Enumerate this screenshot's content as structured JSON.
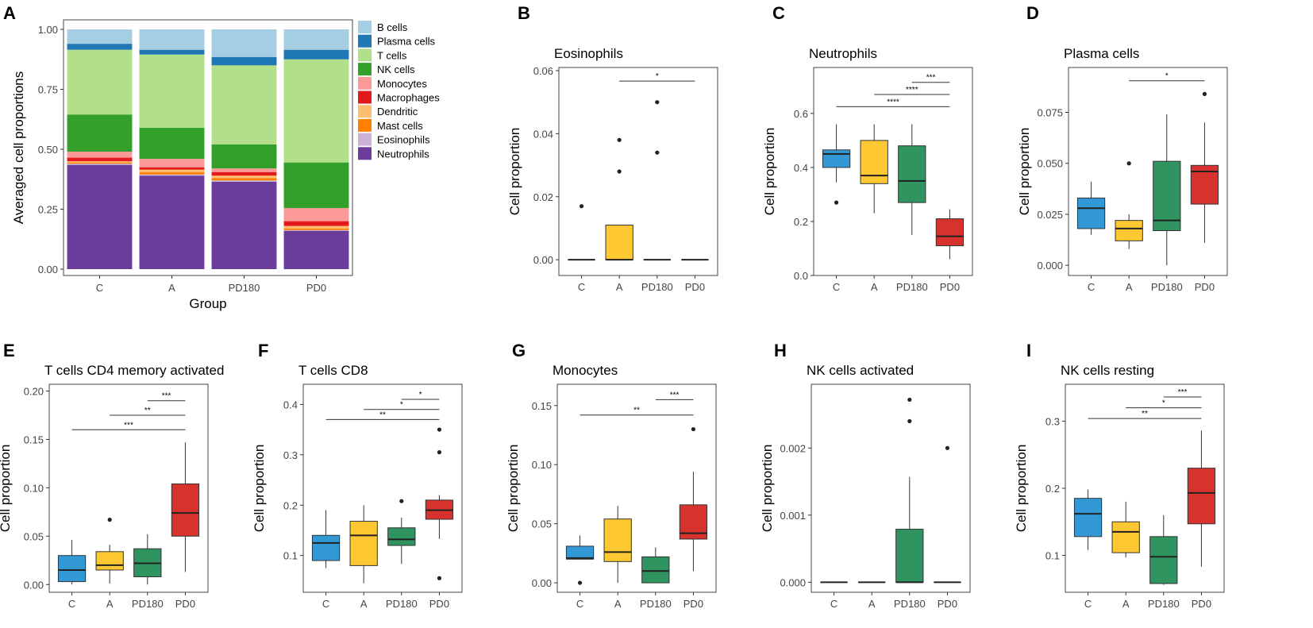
{
  "colors": {
    "C": "#3399d6",
    "A": "#fdc831",
    "PD180": "#2f9460",
    "PD0": "#d8322e"
  },
  "ylabel": "Cell proportion",
  "chart_data": [
    {
      "id": "stacked",
      "letter": "A",
      "type": "bar",
      "title": "",
      "xlabel": "Group",
      "ylabel": "Averaged cell proportions",
      "categories": [
        "C",
        "A",
        "PD180",
        "PD0"
      ],
      "ylim": [
        0,
        1
      ],
      "yticks": [
        "0.00",
        "0.25",
        "0.50",
        "0.75",
        "1.00"
      ],
      "legend_position": "right",
      "series": [
        {
          "name": "Neutrophils",
          "color": "#6a3d9a",
          "values": [
            0.435,
            0.39,
            0.365,
            0.16
          ]
        },
        {
          "name": "Eosinophils",
          "color": "#cab2d6",
          "values": [
            0.005,
            0.005,
            0.005,
            0.003
          ]
        },
        {
          "name": "Mast cells",
          "color": "#ff7f00",
          "values": [
            0.005,
            0.01,
            0.01,
            0.007
          ]
        },
        {
          "name": "Dendritic",
          "color": "#fdbf6f",
          "values": [
            0.005,
            0.01,
            0.01,
            0.01
          ]
        },
        {
          "name": "Macrophages",
          "color": "#e31a1c",
          "values": [
            0.015,
            0.01,
            0.015,
            0.02
          ]
        },
        {
          "name": "Monocytes",
          "color": "#fb9a99",
          "values": [
            0.025,
            0.035,
            0.015,
            0.055
          ]
        },
        {
          "name": "NK cells",
          "color": "#33a02c",
          "values": [
            0.155,
            0.13,
            0.1,
            0.19
          ]
        },
        {
          "name": "T cells",
          "color": "#b2df8a",
          "values": [
            0.27,
            0.305,
            0.33,
            0.43
          ]
        },
        {
          "name": "Plasma cells",
          "color": "#1f78b4",
          "values": [
            0.025,
            0.02,
            0.035,
            0.04
          ]
        },
        {
          "name": "B cells",
          "color": "#a6cee3",
          "values": [
            0.06,
            0.085,
            0.115,
            0.085
          ]
        }
      ]
    },
    {
      "id": "eos",
      "letter": "B",
      "type": "box",
      "title": "Eosinophils",
      "categories": [
        "C",
        "A",
        "PD180",
        "PD0"
      ],
      "ylim": [
        -0.005,
        0.061
      ],
      "yticks": [
        0,
        0.02,
        0.04,
        0.06
      ],
      "ytick_labels": [
        "0.00",
        "0.02",
        "0.04",
        "0.06"
      ],
      "boxes": [
        {
          "group": "C",
          "q1": 0,
          "median": 0,
          "q3": 0,
          "wlo": 0,
          "whi": 0,
          "outliers": [
            0.017
          ]
        },
        {
          "group": "A",
          "q1": 0,
          "median": 0,
          "q3": 0.011,
          "wlo": 0,
          "whi": 0.011,
          "outliers": [
            0.028,
            0.038
          ]
        },
        {
          "group": "PD180",
          "q1": 0,
          "median": 0,
          "q3": 0,
          "wlo": 0,
          "whi": 0,
          "outliers": [
            0.034,
            0.05
          ]
        },
        {
          "group": "PD0",
          "q1": 0,
          "median": 0,
          "q3": 0,
          "wlo": 0,
          "whi": 0,
          "outliers": []
        }
      ],
      "brackets": [
        {
          "from": "A",
          "to": "PD0",
          "y": 0.0567,
          "label": "*"
        }
      ]
    },
    {
      "id": "neu",
      "letter": "C",
      "type": "box",
      "title": "Neutrophils",
      "categories": [
        "C",
        "A",
        "PD180",
        "PD0"
      ],
      "ylim": [
        0,
        0.77
      ],
      "yticks": [
        0,
        0.2,
        0.4,
        0.6
      ],
      "ytick_labels": [
        "0.0",
        "0.2",
        "0.4",
        "0.6"
      ],
      "boxes": [
        {
          "group": "C",
          "q1": 0.4,
          "median": 0.45,
          "q3": 0.465,
          "wlo": 0.345,
          "whi": 0.56,
          "outliers": [
            0.27
          ]
        },
        {
          "group": "A",
          "q1": 0.34,
          "median": 0.37,
          "q3": 0.5,
          "wlo": 0.23,
          "whi": 0.56,
          "outliers": []
        },
        {
          "group": "PD180",
          "q1": 0.27,
          "median": 0.35,
          "q3": 0.48,
          "wlo": 0.15,
          "whi": 0.56,
          "outliers": []
        },
        {
          "group": "PD0",
          "q1": 0.11,
          "median": 0.145,
          "q3": 0.21,
          "wlo": 0.06,
          "whi": 0.245,
          "outliers": []
        }
      ],
      "brackets": [
        {
          "from": "PD180",
          "to": "PD0",
          "y": 0.715,
          "label": "***"
        },
        {
          "from": "A",
          "to": "PD0",
          "y": 0.67,
          "label": "****"
        },
        {
          "from": "C",
          "to": "PD0",
          "y": 0.625,
          "label": "****"
        }
      ]
    },
    {
      "id": "pla",
      "letter": "D",
      "type": "box",
      "title": "Plasma cells",
      "categories": [
        "C",
        "A",
        "PD180",
        "PD0"
      ],
      "ylim": [
        -0.005,
        0.097
      ],
      "yticks": [
        0,
        0.025,
        0.05,
        0.075
      ],
      "ytick_labels": [
        "0.000",
        "0.025",
        "0.050",
        "0.075"
      ],
      "boxes": [
        {
          "group": "C",
          "q1": 0.018,
          "median": 0.028,
          "q3": 0.033,
          "wlo": 0.015,
          "whi": 0.041,
          "outliers": []
        },
        {
          "group": "A",
          "q1": 0.012,
          "median": 0.018,
          "q3": 0.022,
          "wlo": 0.008,
          "whi": 0.025,
          "outliers": [
            0.05
          ]
        },
        {
          "group": "PD180",
          "q1": 0.017,
          "median": 0.022,
          "q3": 0.051,
          "wlo": 0.0,
          "whi": 0.074,
          "outliers": []
        },
        {
          "group": "PD0",
          "q1": 0.03,
          "median": 0.046,
          "q3": 0.049,
          "wlo": 0.011,
          "whi": 0.07,
          "outliers": [
            0.084
          ]
        }
      ],
      "brackets": [
        {
          "from": "A",
          "to": "PD0",
          "y": 0.0905,
          "label": "*"
        }
      ]
    },
    {
      "id": "cd4",
      "letter": "E",
      "type": "box",
      "title": "T cells CD4 memory activated",
      "categories": [
        "C",
        "A",
        "PD180",
        "PD0"
      ],
      "ylim": [
        -0.008,
        0.207
      ],
      "yticks": [
        0,
        0.05,
        0.1,
        0.15,
        0.2
      ],
      "ytick_labels": [
        "0.00",
        "0.05",
        "0.10",
        "0.15",
        "0.20"
      ],
      "boxes": [
        {
          "group": "C",
          "q1": 0.003,
          "median": 0.015,
          "q3": 0.03,
          "wlo": 0.0,
          "whi": 0.046,
          "outliers": []
        },
        {
          "group": "A",
          "q1": 0.015,
          "median": 0.02,
          "q3": 0.034,
          "wlo": 0.001,
          "whi": 0.041,
          "outliers": [
            0.067
          ]
        },
        {
          "group": "PD180",
          "q1": 0.008,
          "median": 0.022,
          "q3": 0.037,
          "wlo": 0.0,
          "whi": 0.052,
          "outliers": []
        },
        {
          "group": "PD0",
          "q1": 0.05,
          "median": 0.074,
          "q3": 0.104,
          "wlo": 0.013,
          "whi": 0.147,
          "outliers": []
        }
      ],
      "brackets": [
        {
          "from": "PD180",
          "to": "PD0",
          "y": 0.19,
          "label": "***"
        },
        {
          "from": "A",
          "to": "PD0",
          "y": 0.175,
          "label": "**"
        },
        {
          "from": "C",
          "to": "PD0",
          "y": 0.16,
          "label": "***"
        }
      ]
    },
    {
      "id": "cd8",
      "letter": "F",
      "type": "box",
      "title": "T cells CD8",
      "categories": [
        "C",
        "A",
        "PD180",
        "PD0"
      ],
      "ylim": [
        0.027,
        0.44
      ],
      "yticks": [
        0.1,
        0.2,
        0.3,
        0.4
      ],
      "ytick_labels": [
        "0.1",
        "0.2",
        "0.3",
        "0.4"
      ],
      "boxes": [
        {
          "group": "C",
          "q1": 0.09,
          "median": 0.125,
          "q3": 0.14,
          "wlo": 0.075,
          "whi": 0.19,
          "outliers": []
        },
        {
          "group": "A",
          "q1": 0.08,
          "median": 0.14,
          "q3": 0.168,
          "wlo": 0.045,
          "whi": 0.2,
          "outliers": []
        },
        {
          "group": "PD180",
          "q1": 0.12,
          "median": 0.132,
          "q3": 0.155,
          "wlo": 0.083,
          "whi": 0.175,
          "outliers": [
            0.208
          ]
        },
        {
          "group": "PD0",
          "q1": 0.172,
          "median": 0.19,
          "q3": 0.21,
          "wlo": 0.133,
          "whi": 0.22,
          "outliers": [
            0.055,
            0.305,
            0.35
          ]
        }
      ],
      "brackets": [
        {
          "from": "PD180",
          "to": "PD0",
          "y": 0.41,
          "label": "*"
        },
        {
          "from": "A",
          "to": "PD0",
          "y": 0.39,
          "label": "*"
        },
        {
          "from": "C",
          "to": "PD0",
          "y": 0.37,
          "label": "**"
        }
      ]
    },
    {
      "id": "mon",
      "letter": "G",
      "type": "box",
      "title": "Monocytes",
      "categories": [
        "C",
        "A",
        "PD180",
        "PD0"
      ],
      "ylim": [
        -0.008,
        0.168
      ],
      "yticks": [
        0,
        0.05,
        0.1,
        0.15
      ],
      "ytick_labels": [
        "0.00",
        "0.05",
        "0.10",
        "0.15"
      ],
      "boxes": [
        {
          "group": "C",
          "q1": 0.02,
          "median": 0.021,
          "q3": 0.031,
          "wlo": 0.02,
          "whi": 0.04,
          "outliers": [
            0.0
          ]
        },
        {
          "group": "A",
          "q1": 0.018,
          "median": 0.026,
          "q3": 0.054,
          "wlo": 0.0,
          "whi": 0.065,
          "outliers": []
        },
        {
          "group": "PD180",
          "q1": 0.0,
          "median": 0.01,
          "q3": 0.022,
          "wlo": 0.0,
          "whi": 0.03,
          "outliers": []
        },
        {
          "group": "PD0",
          "q1": 0.037,
          "median": 0.042,
          "q3": 0.066,
          "wlo": 0.01,
          "whi": 0.094,
          "outliers": [
            0.13
          ]
        }
      ],
      "brackets": [
        {
          "from": "PD180",
          "to": "PD0",
          "y": 0.155,
          "label": "***"
        },
        {
          "from": "C",
          "to": "PD0",
          "y": 0.142,
          "label": "**"
        }
      ]
    },
    {
      "id": "nka",
      "letter": "H",
      "type": "box",
      "title": "NK cells activated",
      "categories": [
        "C",
        "A",
        "PD180",
        "PD0"
      ],
      "ylim": [
        -0.00015,
        0.00295
      ],
      "yticks": [
        0,
        0.001,
        0.002
      ],
      "ytick_labels": [
        "0.000",
        "0.001",
        "0.002"
      ],
      "boxes": [
        {
          "group": "C",
          "q1": 0,
          "median": 0,
          "q3": 0,
          "wlo": 0,
          "whi": 0,
          "outliers": []
        },
        {
          "group": "A",
          "q1": 0,
          "median": 0,
          "q3": 0,
          "wlo": 0,
          "whi": 0,
          "outliers": []
        },
        {
          "group": "PD180",
          "q1": 0,
          "median": 0,
          "q3": 0.00079,
          "wlo": 0,
          "whi": 0.00157,
          "outliers": [
            0.0024,
            0.00272
          ]
        },
        {
          "group": "PD0",
          "q1": 0,
          "median": 0,
          "q3": 0,
          "wlo": 0,
          "whi": 0,
          "outliers": [
            0.002
          ]
        }
      ],
      "brackets": []
    },
    {
      "id": "nkr",
      "letter": "I",
      "type": "box",
      "title": "NK cells resting",
      "categories": [
        "C",
        "A",
        "PD180",
        "PD0"
      ],
      "ylim": [
        0.045,
        0.355
      ],
      "yticks": [
        0.1,
        0.2,
        0.3
      ],
      "ytick_labels": [
        "0.1",
        "0.2",
        "0.3"
      ],
      "boxes": [
        {
          "group": "C",
          "q1": 0.128,
          "median": 0.162,
          "q3": 0.185,
          "wlo": 0.108,
          "whi": 0.198,
          "outliers": []
        },
        {
          "group": "A",
          "q1": 0.104,
          "median": 0.135,
          "q3": 0.15,
          "wlo": 0.097,
          "whi": 0.18,
          "outliers": []
        },
        {
          "group": "PD180",
          "q1": 0.058,
          "median": 0.098,
          "q3": 0.128,
          "wlo": 0.056,
          "whi": 0.16,
          "outliers": []
        },
        {
          "group": "PD0",
          "q1": 0.147,
          "median": 0.193,
          "q3": 0.23,
          "wlo": 0.083,
          "whi": 0.286,
          "outliers": []
        }
      ],
      "brackets": [
        {
          "from": "PD180",
          "to": "PD0",
          "y": 0.336,
          "label": "***"
        },
        {
          "from": "A",
          "to": "PD0",
          "y": 0.32,
          "label": "*"
        },
        {
          "from": "C",
          "to": "PD0",
          "y": 0.304,
          "label": "**"
        }
      ]
    }
  ]
}
